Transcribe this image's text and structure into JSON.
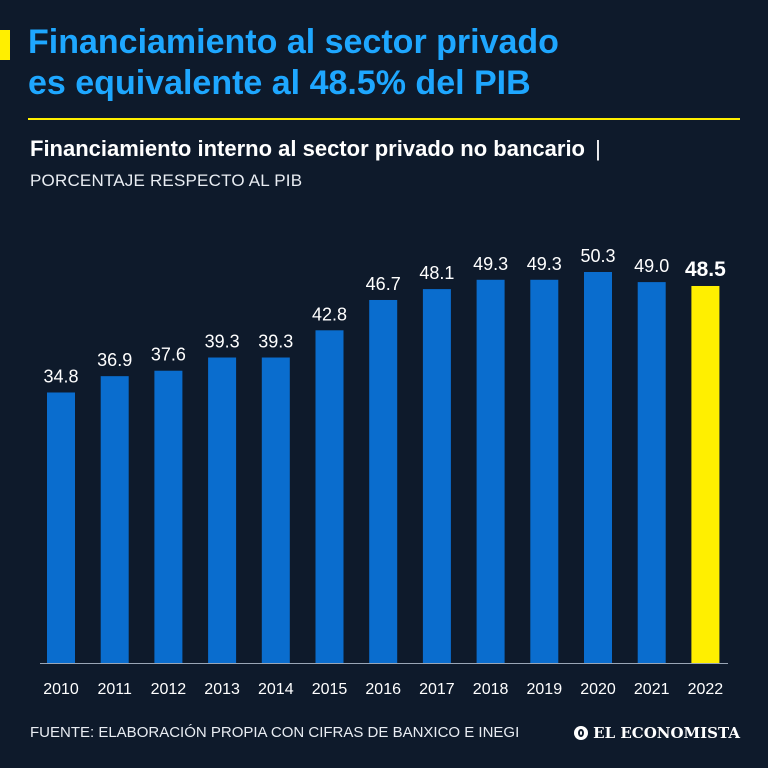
{
  "headline": {
    "line1": "Financiamiento al sector privado",
    "line2": "es equivalente al 48.5% del PIB"
  },
  "subtitle": {
    "text": "Financiamiento interno al sector privado no bancario",
    "separator": "|"
  },
  "unit_label": "PORCENTAJE RESPECTO AL PIB",
  "source": "FUENTE: ELABORACIÓN PROPIA CON CIFRAS DE BANXICO E INEGI",
  "brand": "EL ECONOMISTA",
  "colors": {
    "background": "#0e1a2b",
    "bar": "#0a6dce",
    "highlight": "#ffef00",
    "headline": "#1ea7ff"
  },
  "chart_data": {
    "type": "bar",
    "title": "Financiamiento interno al sector privado no bancario",
    "ylabel": "PORCENTAJE RESPECTO AL PIB",
    "xlabel": "",
    "categories": [
      "2010",
      "2011",
      "2012",
      "2013",
      "2014",
      "2015",
      "2016",
      "2017",
      "2018",
      "2019",
      "2020",
      "2021",
      "2022"
    ],
    "values": [
      34.8,
      36.9,
      37.6,
      39.3,
      39.3,
      42.8,
      46.7,
      48.1,
      49.3,
      49.3,
      50.3,
      49.0,
      48.5
    ],
    "labels": [
      "34.8",
      "36.9",
      "37.6",
      "39.3",
      "39.3",
      "42.8",
      "46.7",
      "48.1",
      "49.3",
      "49.3",
      "50.3",
      "49.0",
      "48.5"
    ],
    "highlight_index": 12,
    "ylim": [
      0,
      50.3
    ],
    "grid": false
  }
}
